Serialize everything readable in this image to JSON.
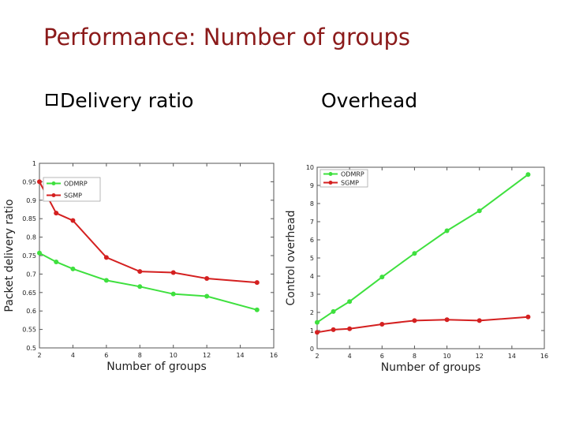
{
  "slide": {
    "title": "Performance: Number of groups",
    "bullet_left": "Delivery ratio",
    "bullet_right": "Overhead"
  },
  "colors": {
    "odmrp": "#3ee03e",
    "sgmp": "#d42020",
    "title": "#8b1a1a"
  },
  "chart_data": [
    {
      "type": "line",
      "title": "Delivery ratio",
      "xlabel": "Number of groups",
      "ylabel": "Packet delivery ratio",
      "xlim": [
        2,
        16
      ],
      "ylim": [
        0.5,
        1
      ],
      "xticks": [
        2,
        4,
        6,
        8,
        10,
        12,
        14,
        16
      ],
      "yticks": [
        0.5,
        0.55,
        0.6,
        0.65,
        0.7,
        0.75,
        0.8,
        0.85,
        0.9,
        0.95,
        1
      ],
      "ytick_labels": [
        "0.5",
        "0.55",
        "0.6",
        "0.65",
        "0.7",
        "0.75",
        "0.8",
        "0.85",
        "0.9",
        "0.95",
        "1"
      ],
      "grid": false,
      "legend": "top-left",
      "series": [
        {
          "name": "ODMRP",
          "x": [
            2,
            3,
            4,
            6,
            8,
            10,
            12,
            15
          ],
          "values": [
            0.757,
            0.733,
            0.714,
            0.683,
            0.666,
            0.646,
            0.64,
            0.603
          ]
        },
        {
          "name": "SGMP",
          "x": [
            2,
            3,
            4,
            6,
            8,
            10,
            12,
            15
          ],
          "values": [
            0.95,
            0.865,
            0.845,
            0.745,
            0.707,
            0.704,
            0.688,
            0.677
          ]
        }
      ]
    },
    {
      "type": "line",
      "title": "Overhead",
      "xlabel": "Number of groups",
      "ylabel": "Control overhead",
      "xlim": [
        2,
        16
      ],
      "ylim": [
        0,
        10
      ],
      "xticks": [
        2,
        4,
        6,
        8,
        10,
        12,
        14,
        16
      ],
      "yticks": [
        0,
        1,
        2,
        3,
        4,
        5,
        6,
        7,
        8,
        9,
        10
      ],
      "ytick_labels": [
        "0",
        "1",
        "2",
        "3",
        "4",
        "5",
        "6",
        "7",
        "8",
        "9",
        "10"
      ],
      "grid": false,
      "legend": "top-left",
      "series": [
        {
          "name": "ODMRP",
          "x": [
            2,
            3,
            4,
            6,
            8,
            10,
            12,
            15
          ],
          "values": [
            1.45,
            2.05,
            2.6,
            3.95,
            5.25,
            6.5,
            7.6,
            9.6
          ]
        },
        {
          "name": "SGMP",
          "x": [
            2,
            3,
            4,
            6,
            8,
            10,
            12,
            15
          ],
          "values": [
            0.9,
            1.05,
            1.1,
            1.35,
            1.55,
            1.6,
            1.55,
            1.75
          ]
        }
      ]
    }
  ]
}
